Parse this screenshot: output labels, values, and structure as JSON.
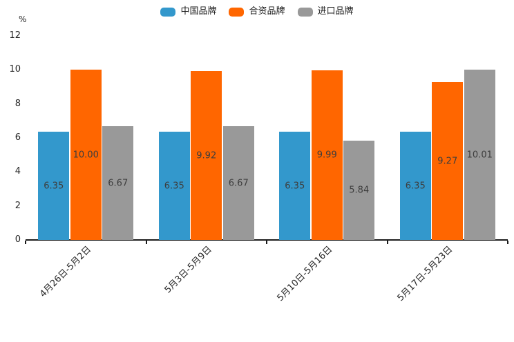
{
  "chart_data": {
    "type": "bar",
    "title": "",
    "ylabel": "%",
    "xlabel": "",
    "ylim": [
      0,
      12
    ],
    "yticks": [
      0,
      2,
      4,
      6,
      8,
      10,
      12
    ],
    "grid": false,
    "legend_position": "top-center",
    "categories": [
      "4月26日-5月2日",
      "5月3日-5月9日",
      "5月10日-5月16日",
      "5月17日-5月23日"
    ],
    "series": [
      {
        "name": "中国品牌",
        "color": "#3398CC",
        "values": [
          6.35,
          6.35,
          6.35,
          6.35
        ],
        "labels": [
          "6.35",
          "6.35",
          "6.35",
          "6.35"
        ]
      },
      {
        "name": "合资品牌",
        "color": "#FF6600",
        "values": [
          10.0,
          9.92,
          9.99,
          9.27
        ],
        "labels": [
          "10.00",
          "9.92",
          "9.99",
          "9.27"
        ]
      },
      {
        "name": "进口品牌",
        "color": "#999999",
        "values": [
          6.67,
          6.67,
          5.84,
          10.01
        ],
        "labels": [
          "6.67",
          "6.67",
          "5.84",
          "10.01"
        ]
      }
    ],
    "axis_color": "#1a1a1a"
  }
}
